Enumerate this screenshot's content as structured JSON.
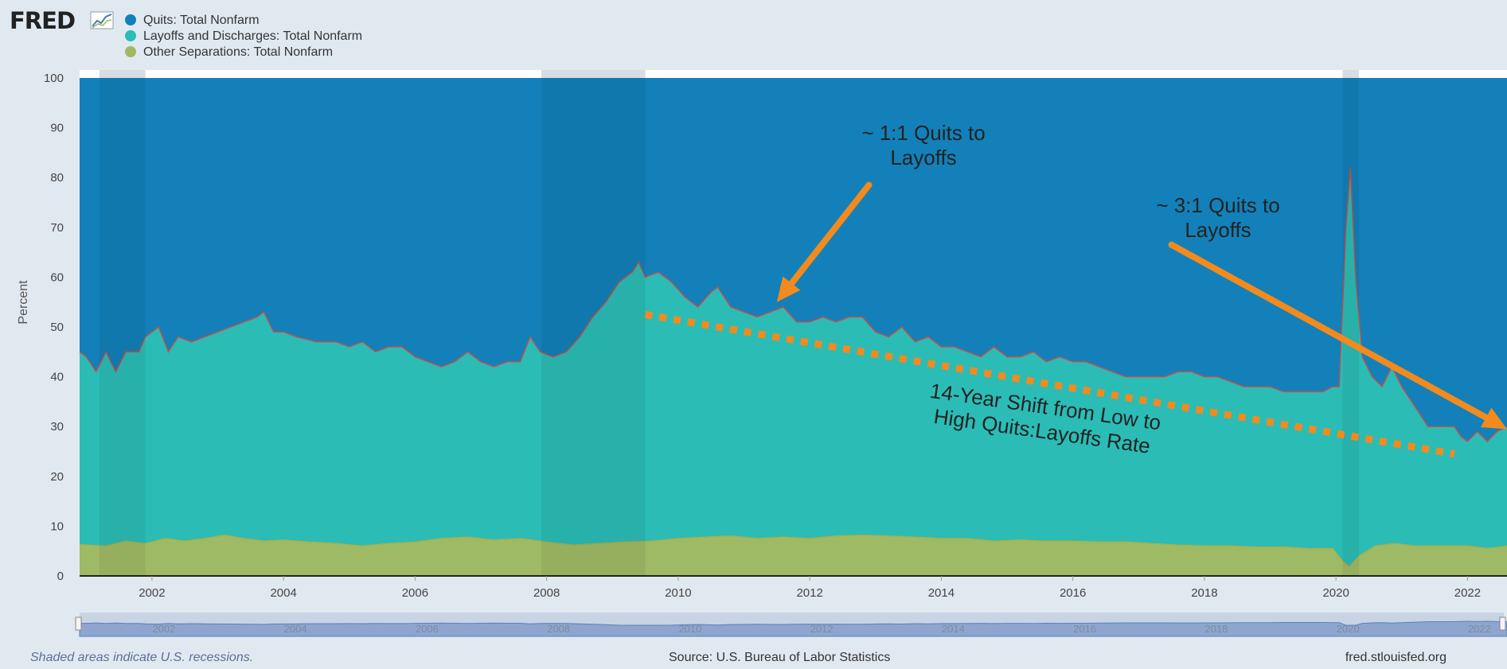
{
  "brand": {
    "name": "FRED"
  },
  "chart_data": {
    "type": "area",
    "stacking": "percent",
    "ylabel": "Percent",
    "ylim": [
      0,
      100
    ],
    "yticks": [
      0,
      10,
      20,
      30,
      40,
      50,
      60,
      70,
      80,
      90,
      100
    ],
    "xlim": [
      2000.9,
      2022.6
    ],
    "xticks": [
      "2002",
      "2004",
      "2006",
      "2008",
      "2010",
      "2012",
      "2014",
      "2016",
      "2018",
      "2020",
      "2022"
    ],
    "grid": true,
    "legend_position": "top-left",
    "recessions": [
      [
        2001.2,
        2001.9
      ],
      [
        2007.92,
        2009.5
      ],
      [
        2020.1,
        2020.35
      ]
    ],
    "series": [
      {
        "name": "Quits: Total Nonfarm",
        "color": "#1380b9",
        "points": [
          [
            2000.9,
            100
          ],
          [
            2022.6,
            100
          ]
        ]
      },
      {
        "name": "Layoffs and Discharges: Total Nonfarm",
        "color": "#2bbcb6",
        "points": [
          [
            2000.9,
            45
          ],
          [
            2001.0,
            44
          ],
          [
            2001.15,
            41
          ],
          [
            2001.3,
            45
          ],
          [
            2001.45,
            41
          ],
          [
            2001.6,
            45
          ],
          [
            2001.8,
            45
          ],
          [
            2001.9,
            48
          ],
          [
            2002.1,
            50
          ],
          [
            2002.25,
            45
          ],
          [
            2002.4,
            48
          ],
          [
            2002.6,
            47
          ],
          [
            2002.8,
            48
          ],
          [
            2003.0,
            49
          ],
          [
            2003.2,
            50
          ],
          [
            2003.4,
            51
          ],
          [
            2003.6,
            52
          ],
          [
            2003.7,
            53
          ],
          [
            2003.85,
            49
          ],
          [
            2004.0,
            49
          ],
          [
            2004.2,
            48
          ],
          [
            2004.5,
            47
          ],
          [
            2004.8,
            47
          ],
          [
            2005.0,
            46
          ],
          [
            2005.2,
            47
          ],
          [
            2005.4,
            45
          ],
          [
            2005.6,
            46
          ],
          [
            2005.8,
            46
          ],
          [
            2006.0,
            44
          ],
          [
            2006.2,
            43
          ],
          [
            2006.4,
            42
          ],
          [
            2006.6,
            43
          ],
          [
            2006.8,
            45
          ],
          [
            2007.0,
            43
          ],
          [
            2007.2,
            42
          ],
          [
            2007.4,
            43
          ],
          [
            2007.6,
            43
          ],
          [
            2007.75,
            48
          ],
          [
            2007.9,
            45
          ],
          [
            2008.1,
            44
          ],
          [
            2008.3,
            45
          ],
          [
            2008.5,
            48
          ],
          [
            2008.7,
            52
          ],
          [
            2008.9,
            55
          ],
          [
            2009.1,
            59
          ],
          [
            2009.3,
            61
          ],
          [
            2009.4,
            63
          ],
          [
            2009.5,
            60
          ],
          [
            2009.7,
            61
          ],
          [
            2009.9,
            59
          ],
          [
            2010.1,
            56
          ],
          [
            2010.3,
            54
          ],
          [
            2010.5,
            57
          ],
          [
            2010.6,
            58
          ],
          [
            2010.8,
            54
          ],
          [
            2011.0,
            53
          ],
          [
            2011.2,
            52
          ],
          [
            2011.4,
            53
          ],
          [
            2011.6,
            54
          ],
          [
            2011.8,
            51
          ],
          [
            2012.0,
            51
          ],
          [
            2012.2,
            52
          ],
          [
            2012.4,
            51
          ],
          [
            2012.6,
            52
          ],
          [
            2012.8,
            52
          ],
          [
            2013.0,
            49
          ],
          [
            2013.2,
            48
          ],
          [
            2013.4,
            50
          ],
          [
            2013.6,
            47
          ],
          [
            2013.8,
            48
          ],
          [
            2014.0,
            46
          ],
          [
            2014.2,
            46
          ],
          [
            2014.4,
            45
          ],
          [
            2014.6,
            44
          ],
          [
            2014.8,
            46
          ],
          [
            2015.0,
            44
          ],
          [
            2015.2,
            44
          ],
          [
            2015.4,
            45
          ],
          [
            2015.6,
            43
          ],
          [
            2015.8,
            44
          ],
          [
            2016.0,
            43
          ],
          [
            2016.2,
            43
          ],
          [
            2016.4,
            42
          ],
          [
            2016.6,
            41
          ],
          [
            2016.8,
            40
          ],
          [
            2017.0,
            40
          ],
          [
            2017.2,
            40
          ],
          [
            2017.4,
            40
          ],
          [
            2017.6,
            41
          ],
          [
            2017.8,
            41
          ],
          [
            2018.0,
            40
          ],
          [
            2018.2,
            40
          ],
          [
            2018.4,
            39
          ],
          [
            2018.6,
            38
          ],
          [
            2018.8,
            38
          ],
          [
            2019.0,
            38
          ],
          [
            2019.2,
            37
          ],
          [
            2019.4,
            37
          ],
          [
            2019.6,
            37
          ],
          [
            2019.8,
            37
          ],
          [
            2019.95,
            38
          ],
          [
            2020.05,
            38
          ],
          [
            2020.15,
            70
          ],
          [
            2020.22,
            82
          ],
          [
            2020.3,
            60
          ],
          [
            2020.4,
            44
          ],
          [
            2020.55,
            40
          ],
          [
            2020.7,
            38
          ],
          [
            2020.85,
            42
          ],
          [
            2021.0,
            38
          ],
          [
            2021.2,
            34
          ],
          [
            2021.4,
            30
          ],
          [
            2021.6,
            30
          ],
          [
            2021.8,
            30
          ],
          [
            2021.9,
            28
          ],
          [
            2022.0,
            27
          ],
          [
            2022.15,
            29
          ],
          [
            2022.3,
            27
          ],
          [
            2022.45,
            29
          ],
          [
            2022.6,
            30
          ]
        ]
      },
      {
        "name": "Other Separations: Total Nonfarm",
        "color": "#9fba64",
        "points": [
          [
            2000.9,
            6.3
          ],
          [
            2001.3,
            6.0
          ],
          [
            2001.6,
            7.0
          ],
          [
            2001.9,
            6.5
          ],
          [
            2002.2,
            7.5
          ],
          [
            2002.5,
            7.0
          ],
          [
            2002.8,
            7.5
          ],
          [
            2003.1,
            8.2
          ],
          [
            2003.4,
            7.5
          ],
          [
            2003.7,
            7.0
          ],
          [
            2004.0,
            7.2
          ],
          [
            2004.4,
            6.8
          ],
          [
            2004.8,
            6.5
          ],
          [
            2005.2,
            6.0
          ],
          [
            2005.6,
            6.5
          ],
          [
            2006.0,
            6.8
          ],
          [
            2006.4,
            7.5
          ],
          [
            2006.8,
            7.8
          ],
          [
            2007.2,
            7.2
          ],
          [
            2007.6,
            7.5
          ],
          [
            2008.0,
            6.8
          ],
          [
            2008.4,
            6.2
          ],
          [
            2008.8,
            6.5
          ],
          [
            2009.2,
            6.8
          ],
          [
            2009.6,
            7.0
          ],
          [
            2010.0,
            7.5
          ],
          [
            2010.4,
            7.8
          ],
          [
            2010.8,
            8.0
          ],
          [
            2011.2,
            7.5
          ],
          [
            2011.6,
            7.8
          ],
          [
            2012.0,
            7.5
          ],
          [
            2012.4,
            8.0
          ],
          [
            2012.8,
            8.2
          ],
          [
            2013.2,
            8.0
          ],
          [
            2013.6,
            7.8
          ],
          [
            2014.0,
            7.5
          ],
          [
            2014.4,
            7.5
          ],
          [
            2014.8,
            7.0
          ],
          [
            2015.2,
            7.2
          ],
          [
            2015.6,
            7.0
          ],
          [
            2016.0,
            7.0
          ],
          [
            2016.4,
            6.8
          ],
          [
            2016.8,
            6.8
          ],
          [
            2017.2,
            6.5
          ],
          [
            2017.6,
            6.2
          ],
          [
            2018.0,
            6.0
          ],
          [
            2018.4,
            6.0
          ],
          [
            2018.8,
            5.8
          ],
          [
            2019.2,
            5.8
          ],
          [
            2019.6,
            5.5
          ],
          [
            2019.95,
            5.5
          ],
          [
            2020.1,
            3.0
          ],
          [
            2020.2,
            1.8
          ],
          [
            2020.35,
            4.0
          ],
          [
            2020.6,
            6.0
          ],
          [
            2020.9,
            6.5
          ],
          [
            2021.2,
            6.0
          ],
          [
            2021.6,
            6.0
          ],
          [
            2022.0,
            6.0
          ],
          [
            2022.3,
            5.5
          ],
          [
            2022.6,
            6.0
          ]
        ]
      }
    ],
    "annotations": [
      {
        "lines": [
          "~ 1:1 Quits to",
          "Layoffs"
        ]
      },
      {
        "lines": [
          "~ 3:1 Quits to",
          "Layoffs"
        ]
      },
      {
        "lines": [
          "14-Year Shift from Low to",
          "High Quits:Layoffs Rate"
        ]
      }
    ],
    "trend_line": {
      "from": [
        2009.5,
        52.5
      ],
      "to": [
        2021.8,
        24.5
      ],
      "color": "#f28a1d"
    },
    "arrows": [
      {
        "from": [
          2012.9,
          78.5
        ],
        "to": [
          2011.5,
          55.0
        ],
        "color": "#f28a1d"
      },
      {
        "from": [
          2017.5,
          66.5
        ],
        "to": [
          2022.6,
          29.5
        ],
        "color": "#f28a1d"
      }
    ]
  },
  "footer": {
    "recession_note": "Shaded areas indicate U.S. recessions.",
    "source": "Source: U.S. Bureau of Labor Statistics",
    "site": "fred.stlouisfed.org"
  }
}
